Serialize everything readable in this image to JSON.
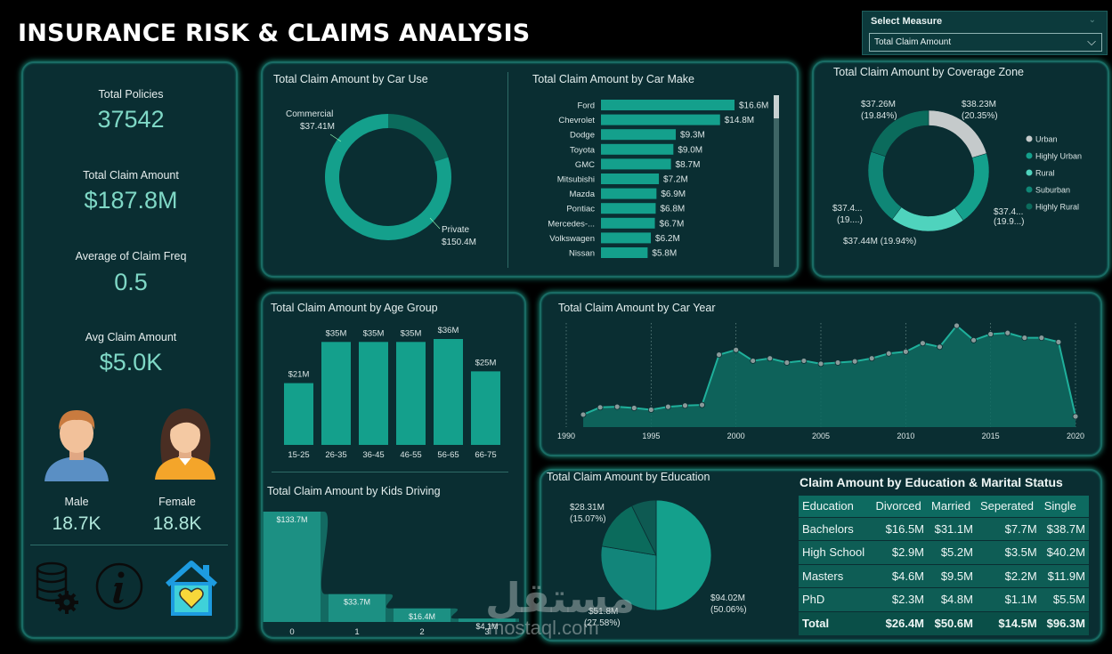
{
  "title": "INSURANCE RISK & CLAIMS ANALYSIS",
  "slicer": {
    "label": "Select Measure",
    "value": "Total Claim Amount"
  },
  "kpis": [
    {
      "label": "Total Policies",
      "value": "37542"
    },
    {
      "label": "Total Claim Amount",
      "value": "$187.8M"
    },
    {
      "label": "Average of Claim Freq",
      "value": "0.5"
    },
    {
      "label": "Avg Claim Amount",
      "value": "$5.0K"
    }
  ],
  "gender": {
    "male": {
      "label": "Male",
      "value": "18.7K"
    },
    "female": {
      "label": "Female",
      "value": "18.8K"
    }
  },
  "icons": [
    "database-gear-icon",
    "info-icon",
    "home-heart-icon"
  ],
  "colors": {
    "teal": "#14a08c",
    "dark_teal": "#0b6b5c",
    "mid_teal": "#0f8676",
    "light_teal": "#4fd3bd",
    "grey": "#c5cacb",
    "kpi": "#7fd8c6"
  },
  "chart_data": [
    {
      "id": "car-use",
      "type": "pie",
      "title": "Total Claim Amount by Car Use",
      "slices": [
        {
          "name": "Commercial",
          "value": 37.41,
          "label": "$37.41M"
        },
        {
          "name": "Private",
          "value": 150.4,
          "label": "$150.4M"
        }
      ]
    },
    {
      "id": "car-make",
      "type": "bar",
      "title": "Total Claim Amount by Car Make",
      "categories": [
        "Ford",
        "Chevrolet",
        "Dodge",
        "Toyota",
        "GMC",
        "Mitsubishi",
        "Mazda",
        "Pontiac",
        "Mercedes-...",
        "Volkswagen",
        "Nissan"
      ],
      "values": [
        16.6,
        14.8,
        9.3,
        9.0,
        8.7,
        7.2,
        6.9,
        6.8,
        6.7,
        6.2,
        5.8
      ],
      "labels": [
        "$16.6M",
        "$14.8M",
        "$9.3M",
        "$9.0M",
        "$8.7M",
        "$7.2M",
        "$6.9M",
        "$6.8M",
        "$6.7M",
        "$6.2M",
        "$5.8M"
      ]
    },
    {
      "id": "coverage-zone",
      "type": "pie",
      "title": "Total Claim Amount by Coverage Zone",
      "slices": [
        {
          "name": "Urban",
          "value": 20.35,
          "label": "$38.23M",
          "pct": "(20.35%)"
        },
        {
          "name": "Highly Urban",
          "value": 19.9,
          "label": "$37.4...",
          "pct": "(19.9...)"
        },
        {
          "name": "Rural",
          "value": 19.94,
          "label": "$37.44M (19.94%)",
          "pct": ""
        },
        {
          "name": "Suburban",
          "value": 19.9,
          "label": "$37.4...",
          "pct": "(19....)"
        },
        {
          "name": "Highly Rural",
          "value": 19.84,
          "label": "$37.26M",
          "pct": "(19.84%)"
        }
      ],
      "legend": [
        "Urban",
        "Highly Urban",
        "Rural",
        "Suburban",
        "Highly Rural"
      ]
    },
    {
      "id": "age-group",
      "type": "bar",
      "title": "Total Claim Amount by Age Group",
      "categories": [
        "15-25",
        "26-35",
        "36-45",
        "46-55",
        "56-65",
        "66-75"
      ],
      "values": [
        21,
        35,
        35,
        35,
        36,
        25
      ],
      "labels": [
        "$21M",
        "$35M",
        "$35M",
        "$35M",
        "$36M",
        "$25M"
      ]
    },
    {
      "id": "car-year",
      "type": "area",
      "title": "Total Claim Amount by Car Year",
      "x": [
        1991,
        1992,
        1993,
        1994,
        1995,
        1996,
        1997,
        1998,
        1999,
        2000,
        2001,
        2002,
        2003,
        2004,
        2005,
        2006,
        2007,
        2008,
        2009,
        2010,
        2011,
        2012,
        2013,
        2014,
        2015,
        2016,
        2017,
        2018,
        2019,
        2020
      ],
      "y": [
        0.3,
        1.5,
        1.6,
        1.4,
        1.1,
        1.6,
        1.8,
        1.9,
        10.2,
        11.0,
        9.2,
        9.6,
        8.9,
        9.2,
        8.7,
        8.9,
        9.1,
        9.6,
        10.4,
        10.7,
        12.1,
        11.5,
        15.0,
        12.6,
        13.6,
        13.8,
        13.0,
        13.0,
        12.3,
        0.0
      ],
      "xticks": [
        "1990",
        "1995",
        "2000",
        "2005",
        "2010",
        "2015",
        "2020"
      ]
    },
    {
      "id": "kids-driving",
      "type": "area",
      "title": "Total Claim Amount by Kids Driving",
      "categories": [
        "0",
        "1",
        "2",
        "3"
      ],
      "values": [
        133.7,
        33.7,
        16.4,
        4.1
      ],
      "labels": [
        "$133.7M",
        "$33.7M",
        "$16.4M",
        "$4.1M"
      ]
    },
    {
      "id": "education",
      "type": "pie",
      "title": "Total Claim Amount by Education",
      "slices": [
        {
          "name": "Bachelors",
          "value": 50.06,
          "label": "$94.02M",
          "pct": "(50.06%)"
        },
        {
          "name": "High School",
          "value": 27.58,
          "label": "$51.8M",
          "pct": "(27.58%)"
        },
        {
          "name": "Masters",
          "value": 15.07,
          "label": "$28.31M",
          "pct": "(15.07%)"
        },
        {
          "name": "PhD",
          "value": 7.29,
          "label": "",
          "pct": ""
        }
      ]
    },
    {
      "id": "edu-marital",
      "type": "table",
      "title": "Claim Amount by Education & Marital Status",
      "columns": [
        "Education",
        "Divorced",
        "Married",
        "Seperated",
        "Single"
      ],
      "rows": [
        [
          "Bachelors",
          "$16.5M",
          "$31.1M",
          "$7.7M",
          "$38.7M"
        ],
        [
          "High School",
          "$2.9M",
          "$5.2M",
          "$3.5M",
          "$40.2M"
        ],
        [
          "Masters",
          "$4.6M",
          "$9.5M",
          "$2.2M",
          "$11.9M"
        ],
        [
          "PhD",
          "$2.3M",
          "$4.8M",
          "$1.1M",
          "$5.5M"
        ]
      ],
      "total": [
        "Total",
        "$26.4M",
        "$50.6M",
        "$14.5M",
        "$96.3M"
      ]
    }
  ],
  "watermark": {
    "arabic": "مستقل",
    "latin": "mostaql.com"
  }
}
